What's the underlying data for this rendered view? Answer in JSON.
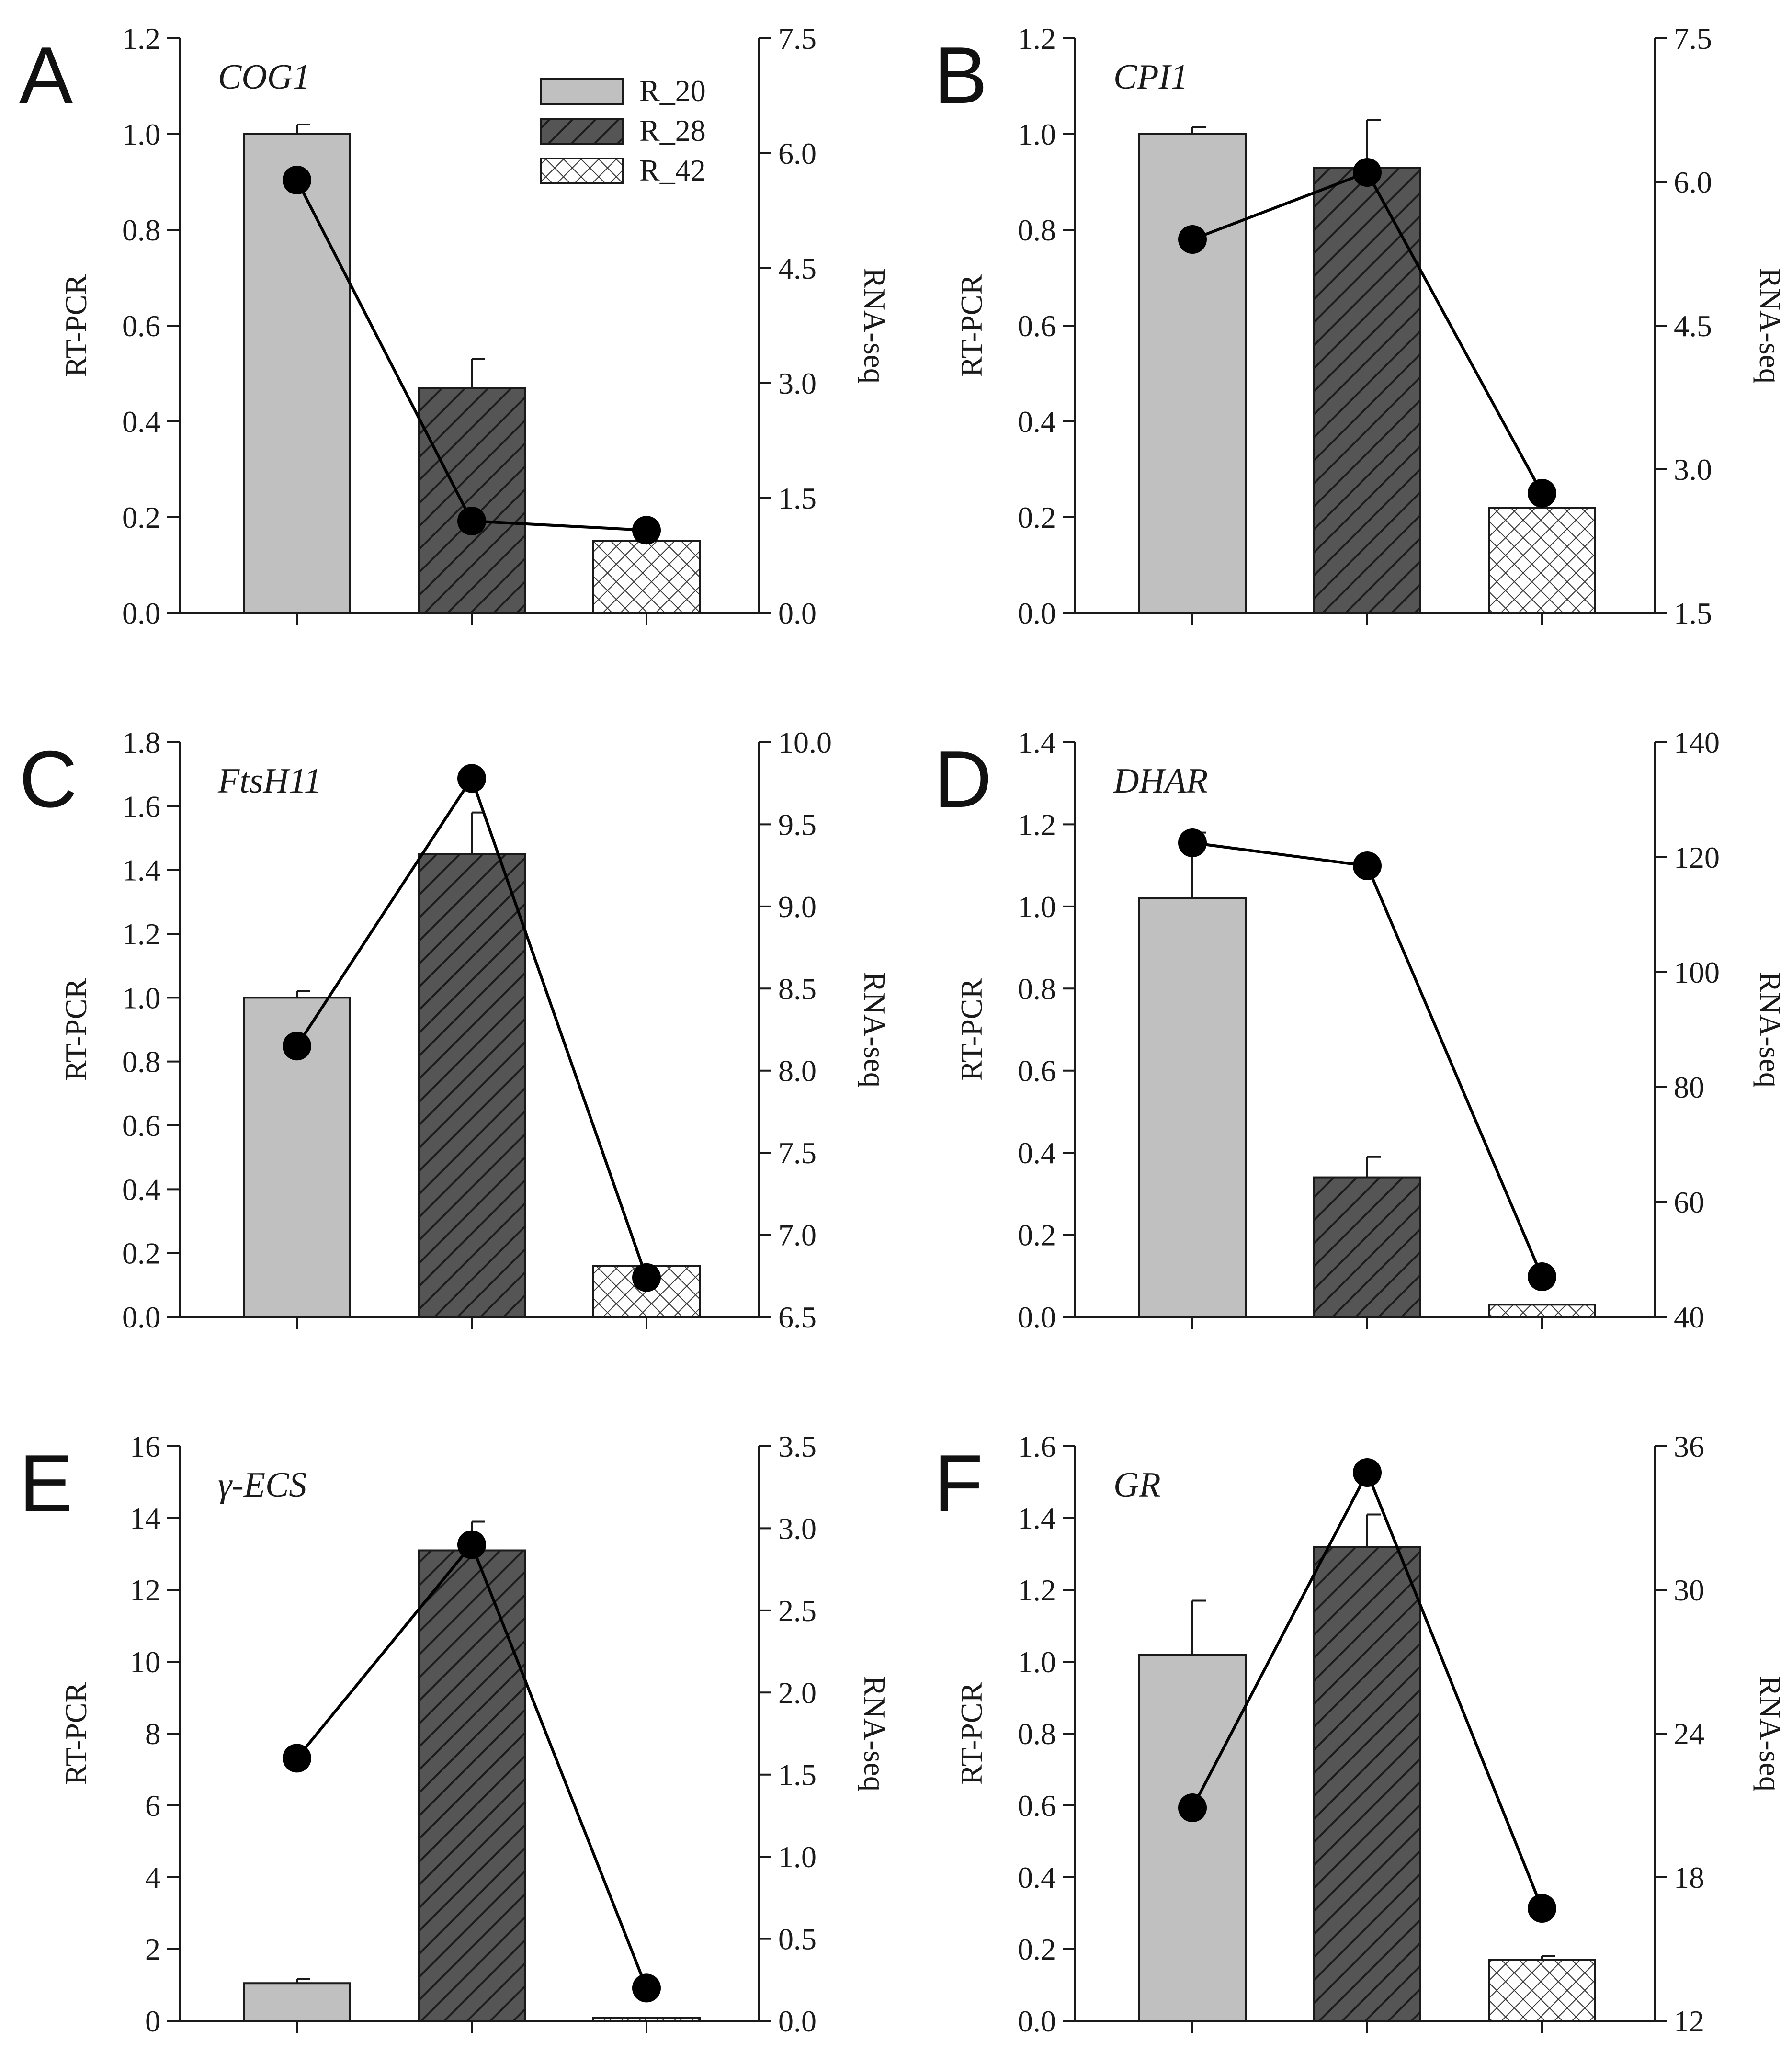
{
  "figure": {
    "y_left_label": "RT-PCR",
    "y_right_label": "RNA-seq",
    "colors": {
      "R_20": "#c0c0c0",
      "R_28": "#555555",
      "R_42": "#ffffff",
      "axis": "#1a1a1a",
      "line": "#000000"
    }
  },
  "legend": {
    "items": [
      {
        "key": "R_20",
        "label": "R_20",
        "pattern": "solid-gray"
      },
      {
        "key": "R_28",
        "label": "R_28",
        "pattern": "diagonal-hatch"
      },
      {
        "key": "R_42",
        "label": "R_42",
        "pattern": "crosshatch"
      }
    ]
  },
  "chart_data": [
    {
      "type": "bar",
      "panel": "A",
      "title": "COG1",
      "categories": [
        "R_20",
        "R_28",
        "R_42"
      ],
      "values": [
        1.0,
        0.47,
        0.15
      ],
      "errors": [
        0.02,
        0.06,
        0.0
      ],
      "ylim": [
        0,
        1.2
      ],
      "yticks": [
        "0.0",
        "0.2",
        "0.4",
        "0.6",
        "0.8",
        "1.0",
        "1.2"
      ],
      "ylabel": "RT-PCR",
      "line_values": [
        5.65,
        1.2,
        1.08
      ],
      "y2lim": [
        0,
        7.5
      ],
      "y2ticks": [
        "0.0",
        "1.5",
        "3.0",
        "4.5",
        "6.0",
        "7.5"
      ],
      "y2label": "RNA-seq",
      "show_legend": true
    },
    {
      "type": "bar",
      "panel": "B",
      "title": "CPI1",
      "categories": [
        "R_20",
        "R_28",
        "R_42"
      ],
      "values": [
        1.0,
        0.93,
        0.22
      ],
      "errors": [
        0.015,
        0.1,
        0.0
      ],
      "ylim": [
        0,
        1.2
      ],
      "yticks": [
        "0.0",
        "0.2",
        "0.4",
        "0.6",
        "0.8",
        "1.0",
        "1.2"
      ],
      "ylabel": "RT-PCR",
      "line_values": [
        5.4,
        6.1,
        2.75
      ],
      "y2lim": [
        1.5,
        7.5
      ],
      "y2ticks": [
        "1.5",
        "3.0",
        "4.5",
        "6.0",
        "7.5"
      ],
      "y2label": "RNA-seq",
      "show_legend": false
    },
    {
      "type": "bar",
      "panel": "C",
      "title": "FtsH11",
      "categories": [
        "R_20",
        "R_28",
        "R_42"
      ],
      "values": [
        1.0,
        1.45,
        0.16
      ],
      "errors": [
        0.02,
        0.13,
        0.0
      ],
      "ylim": [
        0,
        1.8
      ],
      "yticks": [
        "0.0",
        "0.2",
        "0.4",
        "0.6",
        "0.8",
        "1.0",
        "1.2",
        "1.4",
        "1.6",
        "1.8"
      ],
      "ylabel": "RT-PCR",
      "line_values": [
        8.15,
        9.78,
        6.74
      ],
      "y2lim": [
        6.5,
        10.0
      ],
      "y2ticks": [
        "6.5",
        "7.0",
        "7.5",
        "8.0",
        "8.5",
        "9.0",
        "9.5",
        "10.0"
      ],
      "y2label": "RNA-seq",
      "show_legend": false
    },
    {
      "type": "bar",
      "panel": "D",
      "title": "DHAR",
      "categories": [
        "R_20",
        "R_28",
        "R_42"
      ],
      "values": [
        1.02,
        0.34,
        0.03
      ],
      "errors": [
        0.16,
        0.05,
        0.0
      ],
      "ylim": [
        0,
        1.4
      ],
      "yticks": [
        "0.0",
        "0.2",
        "0.4",
        "0.6",
        "0.8",
        "1.0",
        "1.2",
        "1.4"
      ],
      "ylabel": "RT-PCR",
      "line_values": [
        122.5,
        118.5,
        47.0
      ],
      "y2lim": [
        40,
        140
      ],
      "y2ticks": [
        "40",
        "60",
        "80",
        "100",
        "120",
        "140"
      ],
      "y2label": "RNA-seq",
      "show_legend": false
    },
    {
      "type": "bar",
      "panel": "E",
      "title": "γ-ECS",
      "categories": [
        "R_20",
        "R_28",
        "R_42"
      ],
      "values": [
        1.05,
        13.1,
        0.08
      ],
      "errors": [
        0.12,
        0.8,
        0.0
      ],
      "ylim": [
        0,
        16
      ],
      "yticks": [
        "0",
        "2",
        "4",
        "6",
        "8",
        "10",
        "12",
        "14",
        "16"
      ],
      "ylabel": "RT-PCR",
      "line_values": [
        1.6,
        2.9,
        0.2
      ],
      "y2lim": [
        0,
        3.5
      ],
      "y2ticks": [
        "0.0",
        "0.5",
        "1.0",
        "1.5",
        "2.0",
        "2.5",
        "3.0",
        "3.5"
      ],
      "y2label": "RNA-seq",
      "show_legend": false
    },
    {
      "type": "bar",
      "panel": "F",
      "title": "GR",
      "categories": [
        "R_20",
        "R_28",
        "R_42"
      ],
      "values": [
        1.02,
        1.32,
        0.17
      ],
      "errors": [
        0.15,
        0.09,
        0.01
      ],
      "ylim": [
        0,
        1.6
      ],
      "yticks": [
        "0.0",
        "0.2",
        "0.4",
        "0.6",
        "0.8",
        "1.0",
        "1.2",
        "1.4",
        "1.6"
      ],
      "ylabel": "RT-PCR",
      "line_values": [
        20.9,
        34.9,
        16.7
      ],
      "y2lim": [
        12,
        36
      ],
      "y2ticks": [
        "12",
        "18",
        "24",
        "30",
        "36"
      ],
      "y2label": "RNA-seq",
      "show_legend": false
    }
  ]
}
